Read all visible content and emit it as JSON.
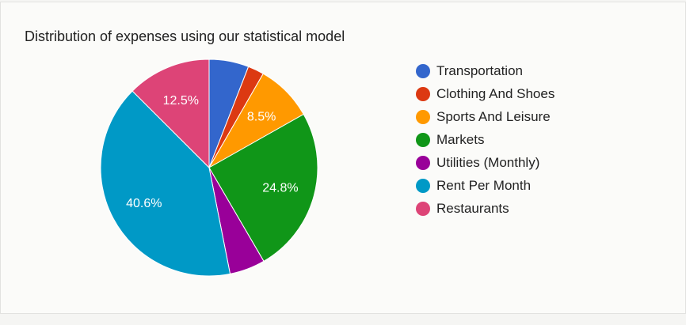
{
  "chart_data": {
    "type": "pie",
    "title": "Distribution of expenses using our statistical model",
    "legend_position": "right",
    "slices": [
      {
        "label": "Transportation",
        "value": 5.9,
        "color": "#3366cc",
        "data_label": ""
      },
      {
        "label": "Clothing And Shoes",
        "value": 2.4,
        "color": "#dc3912",
        "data_label": ""
      },
      {
        "label": "Sports And Leisure",
        "value": 8.5,
        "color": "#ff9900",
        "data_label": "8.5%"
      },
      {
        "label": "Markets",
        "value": 24.8,
        "color": "#109618",
        "data_label": "24.8%"
      },
      {
        "label": "Utilities (Monthly)",
        "value": 5.3,
        "color": "#990099",
        "data_label": ""
      },
      {
        "label": "Rent Per Month",
        "value": 40.6,
        "color": "#0099c6",
        "data_label": "40.6%"
      },
      {
        "label": "Restaurants",
        "value": 12.5,
        "color": "#dd4477",
        "data_label": "12.5%"
      }
    ]
  }
}
